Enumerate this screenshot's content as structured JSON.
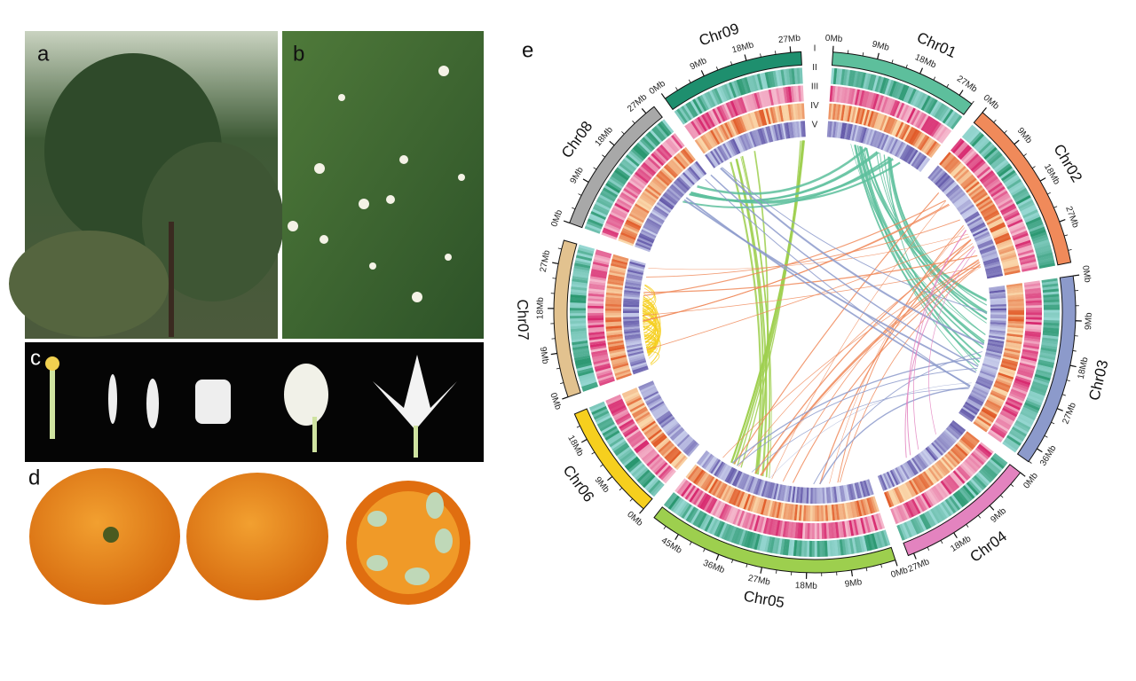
{
  "figure": {
    "panel_labels": [
      "a",
      "b",
      "c",
      "d",
      "e"
    ],
    "circos": {
      "track_labels": [
        "I",
        "II",
        "III",
        "IV",
        "V"
      ],
      "chromosomes": [
        {
          "name": "Chr01",
          "color": "#5dbf9c",
          "ticks": [
            "0Mb",
            "9Mb",
            "18Mb",
            "27Mb"
          ]
        },
        {
          "name": "Chr02",
          "color": "#f08a5a",
          "ticks": [
            "0Mb",
            "9Mb",
            "18Mb",
            "27Mb"
          ]
        },
        {
          "name": "Chr03",
          "color": "#8c9acb",
          "ticks": [
            "0Mb",
            "9Mb",
            "18Mb",
            "27Mb",
            "36Mb"
          ]
        },
        {
          "name": "Chr04",
          "color": "#e383bf",
          "ticks": [
            "0Mb",
            "9Mb",
            "18Mb",
            "27Mb"
          ]
        },
        {
          "name": "Chr05",
          "color": "#9dcf4e",
          "ticks": [
            "0Mb",
            "9Mb",
            "18Mb",
            "27Mb",
            "36Mb",
            "45Mb"
          ]
        },
        {
          "name": "Chr06",
          "color": "#f6cf1e",
          "ticks": [
            "0Mb",
            "9Mb",
            "18Mb"
          ]
        },
        {
          "name": "Chr07",
          "color": "#e2c28f",
          "ticks": [
            "0Mb",
            "9Mb",
            "18Mb",
            "27Mb"
          ]
        },
        {
          "name": "Chr08",
          "color": "#a8a8a8",
          "ticks": [
            "0Mb",
            "9Mb",
            "18Mb",
            "27Mb"
          ]
        },
        {
          "name": "Chr09",
          "color": "#1e8f6e",
          "ticks": [
            "0Mb",
            "9Mb",
            "18Mb",
            "27Mb"
          ]
        }
      ]
    }
  }
}
